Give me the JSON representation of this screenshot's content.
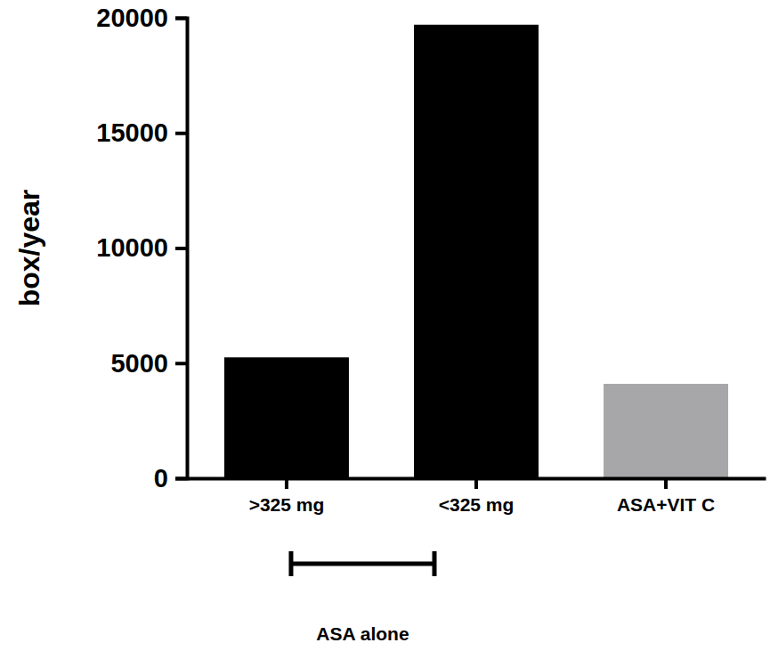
{
  "chart_data": {
    "type": "bar",
    "y_label": "box/year",
    "categories": [
      ">325 mg",
      "<325 mg",
      "ASA+VIT C"
    ],
    "values": [
      5250,
      19700,
      4100
    ],
    "colors": [
      "#000000",
      "#000000",
      "#a7a7a9"
    ],
    "ylim": [
      0,
      20000
    ],
    "yticks": [
      0,
      5000,
      10000,
      15000,
      20000
    ],
    "grid": false,
    "annotations": [
      {
        "text": "ASA alone",
        "span": [
          ">325 mg",
          "<325 mg"
        ]
      }
    ]
  }
}
